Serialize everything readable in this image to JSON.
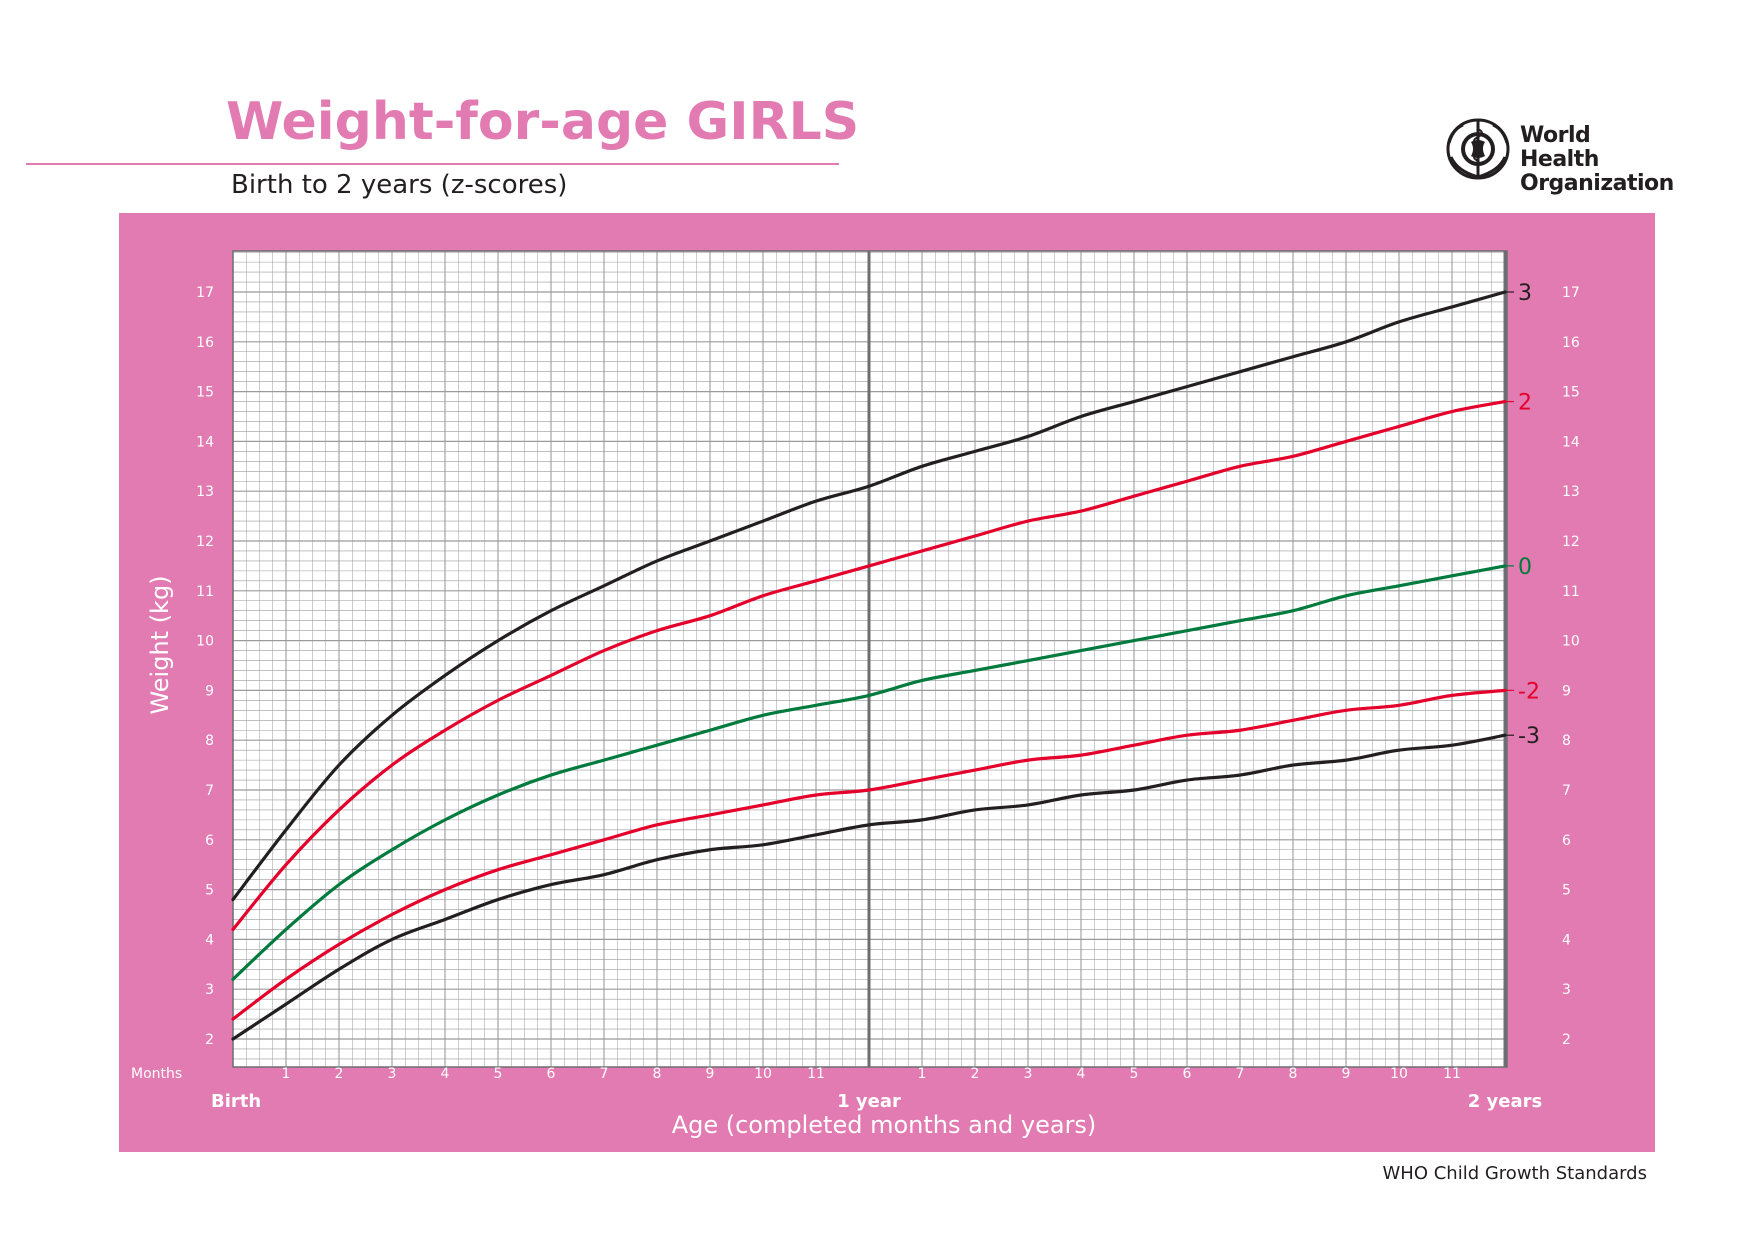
{
  "header": {
    "title": "Weight-for-age GIRLS",
    "subtitle": "Birth to 2 years (z-scores)",
    "org_name_line1": "World Health",
    "org_name_line2": "Organization"
  },
  "footer": {
    "text": "WHO Child Growth Standards"
  },
  "colors": {
    "brand_pink": "#e27bb1",
    "grid": "#9b9b9b",
    "line_black": "#231f20",
    "line_red": "#e4002b",
    "line_green": "#007a3d"
  },
  "chart_data": {
    "type": "line",
    "ylabel": "Weight (kg)",
    "xlabel": "Age (completed months and years)",
    "months_label": "Months",
    "x_unit": "months",
    "xlim": [
      0,
      24
    ],
    "ylim": [
      1.5,
      17.8
    ],
    "y_ticks": [
      2,
      3,
      4,
      5,
      6,
      7,
      8,
      9,
      10,
      11,
      12,
      13,
      14,
      15,
      16,
      17
    ],
    "y_minor_step": 0.2,
    "x_minor_step": 0.25,
    "month_ticks": [
      {
        "x": 1,
        "label": "1"
      },
      {
        "x": 2,
        "label": "2"
      },
      {
        "x": 3,
        "label": "3"
      },
      {
        "x": 4,
        "label": "4"
      },
      {
        "x": 5,
        "label": "5"
      },
      {
        "x": 6,
        "label": "6"
      },
      {
        "x": 7,
        "label": "7"
      },
      {
        "x": 8,
        "label": "8"
      },
      {
        "x": 9,
        "label": "9"
      },
      {
        "x": 10,
        "label": "10"
      },
      {
        "x": 11,
        "label": "11"
      },
      {
        "x": 13,
        "label": "1"
      },
      {
        "x": 14,
        "label": "2"
      },
      {
        "x": 15,
        "label": "3"
      },
      {
        "x": 16,
        "label": "4"
      },
      {
        "x": 17,
        "label": "5"
      },
      {
        "x": 18,
        "label": "6"
      },
      {
        "x": 19,
        "label": "7"
      },
      {
        "x": 20,
        "label": "8"
      },
      {
        "x": 21,
        "label": "9"
      },
      {
        "x": 22,
        "label": "10"
      },
      {
        "x": 23,
        "label": "11"
      }
    ],
    "year_ticks": [
      {
        "x": 0,
        "label": "Birth"
      },
      {
        "x": 12,
        "label": "1 year"
      },
      {
        "x": 24,
        "label": "2 years"
      }
    ],
    "x": [
      0,
      1,
      2,
      3,
      4,
      5,
      6,
      7,
      8,
      9,
      10,
      11,
      12,
      13,
      14,
      15,
      16,
      17,
      18,
      19,
      20,
      21,
      22,
      23,
      24
    ],
    "series": [
      {
        "name": "3",
        "color": "#231f20",
        "values": [
          4.8,
          6.2,
          7.5,
          8.5,
          9.3,
          10.0,
          10.6,
          11.1,
          11.6,
          12.0,
          12.4,
          12.8,
          13.1,
          13.5,
          13.8,
          14.1,
          14.5,
          14.8,
          15.1,
          15.4,
          15.7,
          16.0,
          16.4,
          16.7,
          17.0
        ]
      },
      {
        "name": "2",
        "color": "#e4002b",
        "values": [
          4.2,
          5.5,
          6.6,
          7.5,
          8.2,
          8.8,
          9.3,
          9.8,
          10.2,
          10.5,
          10.9,
          11.2,
          11.5,
          11.8,
          12.1,
          12.4,
          12.6,
          12.9,
          13.2,
          13.5,
          13.7,
          14.0,
          14.3,
          14.6,
          14.8
        ]
      },
      {
        "name": "0",
        "color": "#007a3d",
        "values": [
          3.2,
          4.2,
          5.1,
          5.8,
          6.4,
          6.9,
          7.3,
          7.6,
          7.9,
          8.2,
          8.5,
          8.7,
          8.9,
          9.2,
          9.4,
          9.6,
          9.8,
          10.0,
          10.2,
          10.4,
          10.6,
          10.9,
          11.1,
          11.3,
          11.5
        ]
      },
      {
        "name": "-2",
        "color": "#e4002b",
        "values": [
          2.4,
          3.2,
          3.9,
          4.5,
          5.0,
          5.4,
          5.7,
          6.0,
          6.3,
          6.5,
          6.7,
          6.9,
          7.0,
          7.2,
          7.4,
          7.6,
          7.7,
          7.9,
          8.1,
          8.2,
          8.4,
          8.6,
          8.7,
          8.9,
          9.0
        ]
      },
      {
        "name": "-3",
        "color": "#231f20",
        "values": [
          2.0,
          2.7,
          3.4,
          4.0,
          4.4,
          4.8,
          5.1,
          5.3,
          5.6,
          5.8,
          5.9,
          6.1,
          6.3,
          6.4,
          6.6,
          6.7,
          6.9,
          7.0,
          7.2,
          7.3,
          7.5,
          7.6,
          7.8,
          7.9,
          8.1
        ]
      }
    ]
  }
}
